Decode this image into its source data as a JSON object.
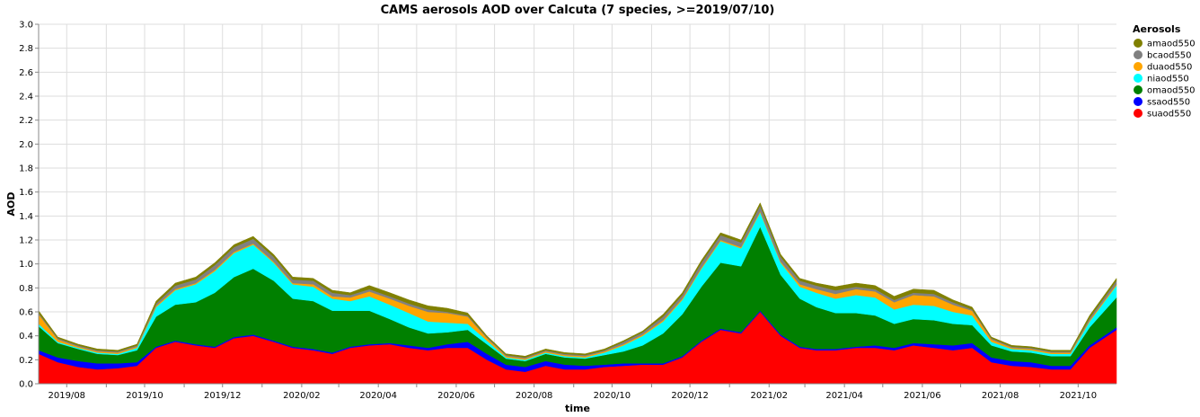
{
  "chart_data": {
    "type": "area",
    "stacked": true,
    "title": "CAMS aerosols AOD over Calcuta (7 species, >=2019/07/10)",
    "xlabel": "time",
    "ylabel": "AOD",
    "ylim": [
      0,
      3.0
    ],
    "y_ticks": [
      "0.0",
      "0.2",
      "0.4",
      "0.6",
      "0.8",
      "1.0",
      "1.2",
      "1.4",
      "1.6",
      "1.8",
      "2.0",
      "2.2",
      "2.4",
      "2.6",
      "2.8",
      "3.0"
    ],
    "xlim": [
      "2019-07-10",
      "2021-10-31"
    ],
    "x_ticks": [
      "2019/08",
      "2019/10",
      "2019/12",
      "2020/02",
      "2020/04",
      "2020/06",
      "2020/08",
      "2020/10",
      "2020/12",
      "2021/02",
      "2021/04",
      "2021/06",
      "2021/08",
      "2021/10"
    ],
    "x_tick_dates": [
      "2019-08-01",
      "2019-10-01",
      "2019-12-01",
      "2020-02-01",
      "2020-04-01",
      "2020-06-01",
      "2020-08-01",
      "2020-10-01",
      "2020-12-01",
      "2021-02-01",
      "2021-04-01",
      "2021-06-01",
      "2021-08-01",
      "2021-10-01"
    ],
    "grid": true,
    "legend": {
      "title": "Aerosols",
      "placement": "right",
      "entries": [
        {
          "name": "amaod550",
          "color": "#808000"
        },
        {
          "name": "bcaod550",
          "color": "#808080"
        },
        {
          "name": "duaod550",
          "color": "#ffa500"
        },
        {
          "name": "niaod550",
          "color": "#00ffff"
        },
        {
          "name": "omaod550",
          "color": "#008000"
        },
        {
          "name": "ssaod550",
          "color": "#0000ff"
        },
        {
          "name": "suaod550",
          "color": "#ff0000"
        }
      ]
    },
    "x": [
      "2019-07-10",
      "2019-07-25",
      "2019-08-10",
      "2019-08-25",
      "2019-09-10",
      "2019-09-25",
      "2019-10-10",
      "2019-10-25",
      "2019-11-10",
      "2019-11-25",
      "2019-12-10",
      "2019-12-25",
      "2020-01-10",
      "2020-01-25",
      "2020-02-10",
      "2020-02-25",
      "2020-03-10",
      "2020-03-25",
      "2020-04-10",
      "2020-04-25",
      "2020-05-10",
      "2020-05-25",
      "2020-06-10",
      "2020-06-25",
      "2020-07-10",
      "2020-07-25",
      "2020-08-10",
      "2020-08-25",
      "2020-09-10",
      "2020-09-25",
      "2020-10-10",
      "2020-10-25",
      "2020-11-10",
      "2020-11-25",
      "2020-12-10",
      "2020-12-25",
      "2021-01-10",
      "2021-01-25",
      "2021-02-10",
      "2021-02-25",
      "2021-03-10",
      "2021-03-25",
      "2021-04-10",
      "2021-04-25",
      "2021-05-10",
      "2021-05-25",
      "2021-06-10",
      "2021-06-25",
      "2021-07-10",
      "2021-07-25",
      "2021-08-10",
      "2021-08-25",
      "2021-09-10",
      "2021-09-25",
      "2021-10-10",
      "2021-10-31"
    ],
    "series": [
      {
        "name": "suaod550",
        "color": "#ff0000",
        "values": [
          0.25,
          0.18,
          0.14,
          0.12,
          0.13,
          0.15,
          0.3,
          0.35,
          0.32,
          0.3,
          0.38,
          0.4,
          0.35,
          0.3,
          0.28,
          0.25,
          0.3,
          0.32,
          0.33,
          0.3,
          0.28,
          0.3,
          0.3,
          0.2,
          0.12,
          0.1,
          0.15,
          0.12,
          0.12,
          0.14,
          0.15,
          0.16,
          0.16,
          0.22,
          0.35,
          0.45,
          0.42,
          0.6,
          0.4,
          0.3,
          0.28,
          0.28,
          0.3,
          0.3,
          0.28,
          0.32,
          0.3,
          0.28,
          0.3,
          0.18,
          0.15,
          0.14,
          0.12,
          0.12,
          0.3,
          0.45
        ]
      },
      {
        "name": "ssaod550",
        "color": "#0000ff",
        "values": [
          0.03,
          0.04,
          0.05,
          0.05,
          0.04,
          0.03,
          0.01,
          0.01,
          0.01,
          0.01,
          0.01,
          0.01,
          0.01,
          0.01,
          0.01,
          0.01,
          0.01,
          0.01,
          0.01,
          0.02,
          0.02,
          0.03,
          0.05,
          0.05,
          0.04,
          0.04,
          0.04,
          0.04,
          0.03,
          0.02,
          0.02,
          0.01,
          0.01,
          0.01,
          0.01,
          0.01,
          0.01,
          0.01,
          0.01,
          0.01,
          0.01,
          0.01,
          0.01,
          0.02,
          0.02,
          0.02,
          0.03,
          0.04,
          0.04,
          0.04,
          0.04,
          0.04,
          0.03,
          0.03,
          0.02,
          0.02
        ]
      },
      {
        "name": "omaod550",
        "color": "#008000",
        "values": [
          0.2,
          0.12,
          0.1,
          0.08,
          0.07,
          0.1,
          0.25,
          0.3,
          0.35,
          0.45,
          0.5,
          0.55,
          0.5,
          0.4,
          0.4,
          0.35,
          0.3,
          0.28,
          0.2,
          0.15,
          0.12,
          0.1,
          0.1,
          0.08,
          0.05,
          0.05,
          0.06,
          0.06,
          0.06,
          0.08,
          0.1,
          0.15,
          0.25,
          0.35,
          0.45,
          0.55,
          0.55,
          0.7,
          0.5,
          0.4,
          0.35,
          0.3,
          0.28,
          0.25,
          0.2,
          0.2,
          0.2,
          0.18,
          0.15,
          0.1,
          0.08,
          0.08,
          0.08,
          0.08,
          0.15,
          0.25
        ]
      },
      {
        "name": "niaod550",
        "color": "#00ffff",
        "values": [
          0.02,
          0.01,
          0.01,
          0.01,
          0.01,
          0.02,
          0.08,
          0.12,
          0.15,
          0.18,
          0.2,
          0.2,
          0.15,
          0.12,
          0.12,
          0.1,
          0.08,
          0.12,
          0.12,
          0.12,
          0.1,
          0.08,
          0.05,
          0.03,
          0.01,
          0.01,
          0.01,
          0.01,
          0.01,
          0.02,
          0.05,
          0.08,
          0.1,
          0.12,
          0.15,
          0.18,
          0.15,
          0.12,
          0.1,
          0.1,
          0.12,
          0.12,
          0.15,
          0.15,
          0.12,
          0.12,
          0.12,
          0.1,
          0.08,
          0.03,
          0.02,
          0.02,
          0.02,
          0.02,
          0.05,
          0.1
        ]
      },
      {
        "name": "duaod550",
        "color": "#ffa500",
        "values": [
          0.08,
          0.02,
          0.01,
          0.01,
          0.01,
          0.01,
          0.01,
          0.01,
          0.01,
          0.01,
          0.01,
          0.01,
          0.01,
          0.01,
          0.02,
          0.02,
          0.03,
          0.04,
          0.05,
          0.06,
          0.08,
          0.08,
          0.06,
          0.02,
          0.01,
          0.01,
          0.01,
          0.01,
          0.01,
          0.01,
          0.01,
          0.01,
          0.01,
          0.01,
          0.01,
          0.01,
          0.01,
          0.01,
          0.01,
          0.02,
          0.03,
          0.04,
          0.05,
          0.05,
          0.06,
          0.08,
          0.08,
          0.06,
          0.04,
          0.02,
          0.01,
          0.01,
          0.01,
          0.01,
          0.01,
          0.01
        ]
      },
      {
        "name": "bcaod550",
        "color": "#808080",
        "values": [
          0.01,
          0.01,
          0.01,
          0.01,
          0.01,
          0.01,
          0.02,
          0.03,
          0.03,
          0.04,
          0.04,
          0.04,
          0.04,
          0.03,
          0.03,
          0.03,
          0.02,
          0.02,
          0.02,
          0.02,
          0.02,
          0.01,
          0.01,
          0.01,
          0.01,
          0.01,
          0.01,
          0.01,
          0.01,
          0.01,
          0.02,
          0.02,
          0.03,
          0.03,
          0.04,
          0.04,
          0.04,
          0.05,
          0.04,
          0.03,
          0.03,
          0.03,
          0.02,
          0.02,
          0.02,
          0.02,
          0.02,
          0.02,
          0.01,
          0.01,
          0.01,
          0.01,
          0.01,
          0.01,
          0.02,
          0.03
        ]
      },
      {
        "name": "amaod550",
        "color": "#808000",
        "values": [
          0.02,
          0.01,
          0.01,
          0.01,
          0.01,
          0.01,
          0.02,
          0.02,
          0.02,
          0.02,
          0.02,
          0.02,
          0.02,
          0.02,
          0.02,
          0.02,
          0.02,
          0.03,
          0.03,
          0.03,
          0.03,
          0.03,
          0.02,
          0.01,
          0.01,
          0.01,
          0.01,
          0.01,
          0.01,
          0.01,
          0.01,
          0.01,
          0.02,
          0.02,
          0.02,
          0.02,
          0.02,
          0.02,
          0.02,
          0.02,
          0.02,
          0.03,
          0.03,
          0.03,
          0.03,
          0.03,
          0.03,
          0.02,
          0.02,
          0.01,
          0.01,
          0.01,
          0.01,
          0.01,
          0.02,
          0.02
        ]
      }
    ]
  }
}
